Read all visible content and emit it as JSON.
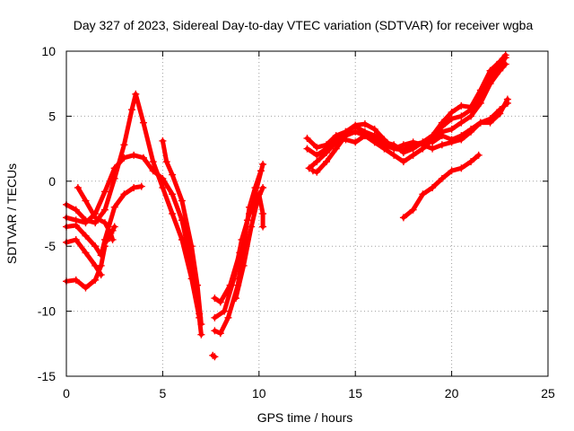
{
  "chart_data": {
    "type": "scatter",
    "title": "Day 327 of 2023, Sidereal Day-to-day VTEC variation (SDTVAR) for receiver wgba",
    "xlabel": "GPS time / hours",
    "ylabel": "SDTVAR / TECUs",
    "xlim": [
      0,
      25
    ],
    "ylim": [
      -15,
      10
    ],
    "xticks": [
      0,
      5,
      10,
      15,
      20,
      25
    ],
    "yticks": [
      -15,
      -10,
      -5,
      0,
      5,
      10
    ],
    "grid": true,
    "color": "#ff0000",
    "series": [
      {
        "name": "track-1",
        "points": [
          [
            0,
            -1.8
          ],
          [
            0.5,
            -2.2
          ],
          [
            1.0,
            -3.0
          ],
          [
            1.5,
            -3.2
          ],
          [
            2.0,
            -2.2
          ],
          [
            2.5,
            0.2
          ],
          [
            3.0,
            2.8
          ],
          [
            3.4,
            5.5
          ],
          [
            3.6,
            6.7
          ],
          [
            4.0,
            4.5
          ],
          [
            4.5,
            1.5
          ],
          [
            5.0,
            -0.5
          ],
          [
            5.5,
            -2.5
          ],
          [
            6.0,
            -4.5
          ],
          [
            6.5,
            -7.5
          ],
          [
            6.9,
            -10.5
          ],
          [
            7.0,
            -11.8
          ]
        ]
      },
      {
        "name": "track-2",
        "points": [
          [
            0,
            -2.8
          ],
          [
            0.5,
            -3.0
          ],
          [
            1.0,
            -3.2
          ],
          [
            1.5,
            -2.5
          ],
          [
            2.0,
            -0.8
          ],
          [
            2.5,
            1.0
          ],
          [
            3.0,
            1.8
          ],
          [
            3.5,
            2.0
          ],
          [
            4.0,
            1.8
          ],
          [
            4.5,
            0.8
          ],
          [
            5.0,
            0.2
          ],
          [
            5.5,
            -1.0
          ],
          [
            6.0,
            -3.0
          ],
          [
            6.5,
            -6.5
          ],
          [
            6.9,
            -10.2
          ]
        ]
      },
      {
        "name": "track-3",
        "points": [
          [
            0,
            -3.5
          ],
          [
            0.5,
            -3.4
          ],
          [
            1.0,
            -4.2
          ],
          [
            1.5,
            -5.0
          ],
          [
            1.8,
            -5.7
          ],
          [
            2.0,
            -4.5
          ],
          [
            2.5,
            -2.0
          ],
          [
            3.0,
            -1.0
          ],
          [
            3.5,
            -0.5
          ],
          [
            3.9,
            -0.4
          ]
        ]
      },
      {
        "name": "track-4",
        "points": [
          [
            0,
            -4.7
          ],
          [
            0.5,
            -4.5
          ],
          [
            1.0,
            -5.5
          ],
          [
            1.5,
            -6.5
          ],
          [
            1.8,
            -7.2
          ]
        ]
      },
      {
        "name": "track-5",
        "points": [
          [
            0,
            -7.7
          ],
          [
            0.5,
            -7.6
          ],
          [
            1.0,
            -8.2
          ],
          [
            1.5,
            -7.6
          ],
          [
            1.8,
            -6.5
          ],
          [
            2.0,
            -5.0
          ]
        ]
      },
      {
        "name": "track-6",
        "points": [
          [
            0.6,
            -0.5
          ],
          [
            1.0,
            -1.5
          ],
          [
            1.5,
            -2.8
          ],
          [
            2.0,
            -3.2
          ],
          [
            2.3,
            -4.0
          ],
          [
            2.4,
            -4.5
          ]
        ]
      },
      {
        "name": "track-7",
        "points": [
          [
            2.1,
            -4.6
          ],
          [
            2.4,
            -3.8
          ],
          [
            2.5,
            -3.5
          ]
        ]
      },
      {
        "name": "track-8",
        "points": [
          [
            5.0,
            3.1
          ],
          [
            5.2,
            1.5
          ],
          [
            5.5,
            0.5
          ],
          [
            6.0,
            -1.5
          ],
          [
            6.5,
            -5.0
          ],
          [
            6.8,
            -8.0
          ],
          [
            7.0,
            -11.0
          ]
        ]
      },
      {
        "name": "track-9",
        "points": [
          [
            7.6,
            -13.4
          ],
          [
            7.7,
            -13.5
          ]
        ]
      },
      {
        "name": "track-10",
        "points": [
          [
            7.7,
            -11.5
          ],
          [
            8.0,
            -11.7
          ],
          [
            8.4,
            -10.5
          ],
          [
            8.9,
            -8.0
          ],
          [
            9.2,
            -5.0
          ],
          [
            9.5,
            -2.0
          ],
          [
            9.8,
            -0.5
          ],
          [
            10.1,
            0.8
          ]
        ]
      },
      {
        "name": "track-11",
        "points": [
          [
            7.7,
            -9.0
          ],
          [
            8.0,
            -9.3
          ],
          [
            8.5,
            -8.0
          ],
          [
            9.0,
            -5.5
          ],
          [
            9.4,
            -3.0
          ],
          [
            9.8,
            -1.0
          ],
          [
            10.2,
            1.3
          ]
        ]
      },
      {
        "name": "track-12",
        "points": [
          [
            7.7,
            -10.5
          ],
          [
            8.2,
            -10.0
          ],
          [
            8.7,
            -7.5
          ],
          [
            9.1,
            -4.5
          ],
          [
            9.5,
            -2.5
          ],
          [
            9.9,
            -1.5
          ],
          [
            10.2,
            -0.5
          ]
        ]
      },
      {
        "name": "track-13",
        "points": [
          [
            8.8,
            -9.0
          ],
          [
            9.2,
            -6.5
          ],
          [
            9.6,
            -3.5
          ],
          [
            10.0,
            -1.0
          ],
          [
            10.2,
            -2.5
          ],
          [
            10.2,
            -3.5
          ]
        ]
      },
      {
        "name": "track-14",
        "points": [
          [
            12.5,
            3.3
          ],
          [
            13.0,
            2.6
          ],
          [
            13.5,
            2.8
          ],
          [
            14.0,
            3.5
          ],
          [
            14.5,
            3.8
          ],
          [
            15.0,
            4.3
          ],
          [
            15.5,
            4.4
          ],
          [
            16.0,
            4.0
          ],
          [
            16.5,
            3.2
          ],
          [
            17.0,
            2.5
          ],
          [
            17.5,
            2.4
          ],
          [
            18.0,
            2.8
          ],
          [
            18.5,
            3.0
          ],
          [
            19.0,
            3.5
          ],
          [
            19.5,
            4.5
          ],
          [
            20.0,
            5.3
          ],
          [
            20.5,
            5.8
          ],
          [
            21.0,
            5.7
          ],
          [
            21.5,
            7.0
          ],
          [
            22.0,
            8.5
          ],
          [
            22.5,
            9.2
          ],
          [
            22.8,
            9.7
          ]
        ]
      },
      {
        "name": "track-15",
        "points": [
          [
            12.6,
            1.0
          ],
          [
            13.0,
            1.5
          ],
          [
            13.5,
            2.2
          ],
          [
            14.0,
            3.0
          ],
          [
            14.5,
            3.8
          ],
          [
            15.0,
            4.2
          ],
          [
            15.5,
            3.8
          ],
          [
            16.0,
            3.5
          ],
          [
            16.5,
            3.0
          ],
          [
            17.0,
            2.8
          ],
          [
            17.5,
            2.2
          ],
          [
            18.0,
            2.5
          ],
          [
            18.5,
            3.0
          ],
          [
            19.0,
            3.5
          ],
          [
            19.5,
            4.2
          ],
          [
            20.0,
            4.8
          ],
          [
            20.5,
            5.0
          ],
          [
            21.0,
            5.5
          ],
          [
            21.5,
            6.5
          ],
          [
            22.0,
            8.0
          ],
          [
            22.8,
            9.5
          ]
        ]
      },
      {
        "name": "track-16",
        "points": [
          [
            12.8,
            0.8
          ],
          [
            13.0,
            0.7
          ],
          [
            13.5,
            1.5
          ],
          [
            14.0,
            2.5
          ],
          [
            14.5,
            3.5
          ],
          [
            15.0,
            3.8
          ],
          [
            15.5,
            3.5
          ],
          [
            16.0,
            3.0
          ],
          [
            16.5,
            2.5
          ],
          [
            17.0,
            2.0
          ],
          [
            17.5,
            1.5
          ],
          [
            18.0,
            2.0
          ],
          [
            18.5,
            2.5
          ],
          [
            19.0,
            3.2
          ],
          [
            19.5,
            3.8
          ],
          [
            20.0,
            4.0
          ],
          [
            20.5,
            4.5
          ],
          [
            21.0,
            5.0
          ],
          [
            21.5,
            6.0
          ],
          [
            22.0,
            7.5
          ],
          [
            22.5,
            8.5
          ],
          [
            22.8,
            9.0
          ]
        ]
      },
      {
        "name": "track-17",
        "points": [
          [
            12.5,
            2.5
          ],
          [
            13.0,
            2.0
          ],
          [
            13.5,
            2.5
          ],
          [
            14.0,
            3.2
          ],
          [
            14.5,
            3.2
          ],
          [
            15.0,
            3.0
          ],
          [
            15.5,
            3.5
          ],
          [
            16.0,
            3.2
          ],
          [
            16.5,
            2.8
          ],
          [
            17.0,
            2.5
          ],
          [
            17.5,
            2.8
          ],
          [
            18.0,
            3.0
          ],
          [
            18.5,
            2.8
          ],
          [
            19.0,
            2.5
          ],
          [
            19.5,
            2.8
          ],
          [
            20.0,
            3.0
          ],
          [
            20.5,
            3.2
          ],
          [
            21.0,
            3.8
          ],
          [
            21.5,
            4.5
          ],
          [
            22.0,
            4.5
          ],
          [
            22.5,
            5.2
          ],
          [
            22.9,
            6.3
          ]
        ]
      },
      {
        "name": "track-18",
        "points": [
          [
            19.0,
            3.0
          ],
          [
            19.5,
            3.5
          ],
          [
            20.0,
            3.2
          ],
          [
            20.5,
            3.5
          ],
          [
            21.0,
            4.0
          ],
          [
            21.5,
            4.5
          ],
          [
            22.0,
            4.8
          ],
          [
            22.5,
            5.5
          ],
          [
            22.9,
            6.0
          ]
        ]
      },
      {
        "name": "track-19",
        "points": [
          [
            17.5,
            -2.8
          ],
          [
            18.0,
            -2.2
          ],
          [
            18.5,
            -1.0
          ],
          [
            19.0,
            -0.5
          ],
          [
            19.5,
            0.2
          ],
          [
            20.0,
            0.8
          ],
          [
            20.5,
            1.0
          ],
          [
            21.0,
            1.5
          ],
          [
            21.4,
            2.0
          ]
        ]
      }
    ]
  }
}
